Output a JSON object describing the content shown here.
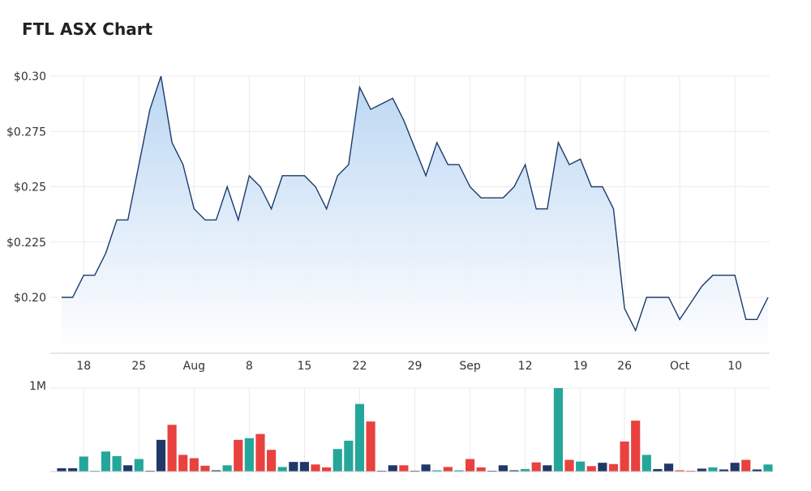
{
  "title": "FTL ASX Chart",
  "colors": {
    "line": "#1a3a6b",
    "area_top": "#b7d4f2",
    "area_bottom": "#ffffff",
    "vol_navy": "#1f3868",
    "vol_teal": "#26a69a",
    "vol_red": "#e8413f",
    "grid": "#ebebeb"
  },
  "chart_data": [
    {
      "type": "area",
      "title": "FTL ASX Chart",
      "xlabel": "",
      "ylabel": "",
      "ylim": [
        0.1775,
        0.3
      ],
      "y_tick_labels": [
        "$0.30",
        "$0.275",
        "$0.25",
        "$0.225",
        "$0.20"
      ],
      "y_tick_values": [
        0.3,
        0.275,
        0.25,
        0.225,
        0.2
      ],
      "x_tick_labels": [
        "18",
        "25",
        "Aug",
        "8",
        "15",
        "22",
        "29",
        "Sep",
        "12",
        "19",
        "26",
        "Oct",
        "10"
      ],
      "x_tick_index": [
        2,
        7,
        12,
        17,
        22,
        27,
        32,
        37,
        42,
        47,
        51,
        56,
        61
      ],
      "grid": true,
      "series": [
        {
          "values": [
            0.2,
            0.2,
            0.21,
            0.21,
            0.22,
            0.235,
            0.235,
            0.26,
            0.285,
            0.3,
            0.27,
            0.26,
            0.24,
            0.235,
            0.235,
            0.25,
            0.235,
            0.255,
            0.25,
            0.24,
            0.255,
            0.255,
            0.255,
            0.25,
            0.24,
            0.255,
            0.26,
            0.295,
            0.285,
            0.2875,
            0.29,
            0.28,
            0.2675,
            0.255,
            0.27,
            0.26,
            0.26,
            0.25,
            0.245,
            0.245,
            0.245,
            0.25,
            0.26,
            0.24,
            0.24,
            0.27,
            0.26,
            0.2625,
            0.25,
            0.25,
            0.24,
            0.195,
            0.185,
            0.2,
            0.2,
            0.2,
            0.19,
            0.1975,
            0.205,
            0.21,
            0.21,
            0.21,
            0.19,
            0.19,
            0.2
          ]
        }
      ]
    },
    {
      "type": "bar",
      "title": "",
      "ylim": [
        0,
        1000000
      ],
      "y_tick_labels": [
        "1M"
      ],
      "y_tick_values": [
        1000000
      ],
      "series": [
        {
          "values": [
            40000,
            40000,
            180000,
            10000,
            240000,
            185000,
            75000,
            150000,
            10000,
            380000,
            560000,
            200000,
            160000,
            70000,
            15000,
            75000,
            380000,
            400000,
            450000,
            260000,
            55000,
            115000,
            115000,
            85000,
            50000,
            270000,
            370000,
            810000,
            600000,
            10000,
            75000,
            75000,
            10000,
            85000,
            15000,
            55000,
            15000,
            150000,
            50000,
            10000,
            75000,
            15000,
            30000,
            110000,
            75000,
            1000000,
            140000,
            120000,
            65000,
            105000,
            90000,
            360000,
            610000,
            200000,
            30000,
            95000,
            15000,
            10000,
            35000,
            50000,
            25000,
            105000,
            140000,
            25000,
            85000
          ],
          "colors": [
            "navy",
            "navy",
            "teal",
            "teal",
            "teal",
            "teal",
            "navy",
            "teal",
            "navy",
            "navy",
            "red",
            "red",
            "red",
            "red",
            "navy",
            "teal",
            "red",
            "teal",
            "red",
            "red",
            "teal",
            "navy",
            "navy",
            "red",
            "red",
            "teal",
            "teal",
            "teal",
            "red",
            "navy",
            "navy",
            "red",
            "navy",
            "navy",
            "teal",
            "red",
            "teal",
            "red",
            "red",
            "navy",
            "navy",
            "navy",
            "teal",
            "red",
            "navy",
            "teal",
            "red",
            "teal",
            "red",
            "navy",
            "red",
            "red",
            "red",
            "teal",
            "navy",
            "navy",
            "red",
            "red",
            "navy",
            "teal",
            "navy",
            "navy",
            "red",
            "navy",
            "teal"
          ]
        }
      ]
    }
  ]
}
